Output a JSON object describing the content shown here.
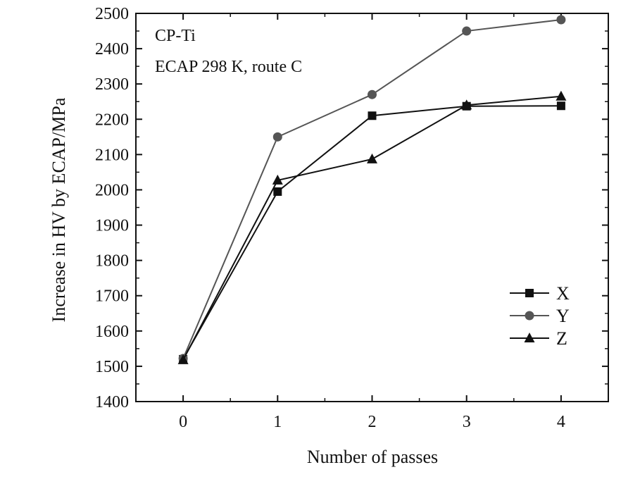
{
  "chart_data": {
    "type": "line",
    "x": [
      0,
      1,
      2,
      3,
      4
    ],
    "xlabel": "Number of passes",
    "ylabel": "Increase in HV by ECAP/MPa",
    "xlim": [
      -0.5,
      4.5
    ],
    "ylim": [
      1400,
      2500
    ],
    "xticks": [
      0,
      1,
      2,
      3,
      4
    ],
    "yticks": [
      1400,
      1500,
      1600,
      1700,
      1800,
      1900,
      2000,
      2100,
      2200,
      2300,
      2400,
      2500
    ],
    "annotations": [
      "CP-Ti",
      "ECAP 298 K, route C"
    ],
    "legend_position": "right",
    "grid": false,
    "series": [
      {
        "name": "X",
        "marker": "square",
        "color": "#111111",
        "values": [
          1520,
          1995,
          2210,
          2237,
          2238
        ]
      },
      {
        "name": "Y",
        "marker": "circle",
        "color": "#555555",
        "values": [
          1522,
          2150,
          2270,
          2450,
          2482
        ]
      },
      {
        "name": "Z",
        "marker": "triangle",
        "color": "#111111",
        "values": [
          1518,
          2027,
          2087,
          2240,
          2265
        ]
      }
    ]
  }
}
